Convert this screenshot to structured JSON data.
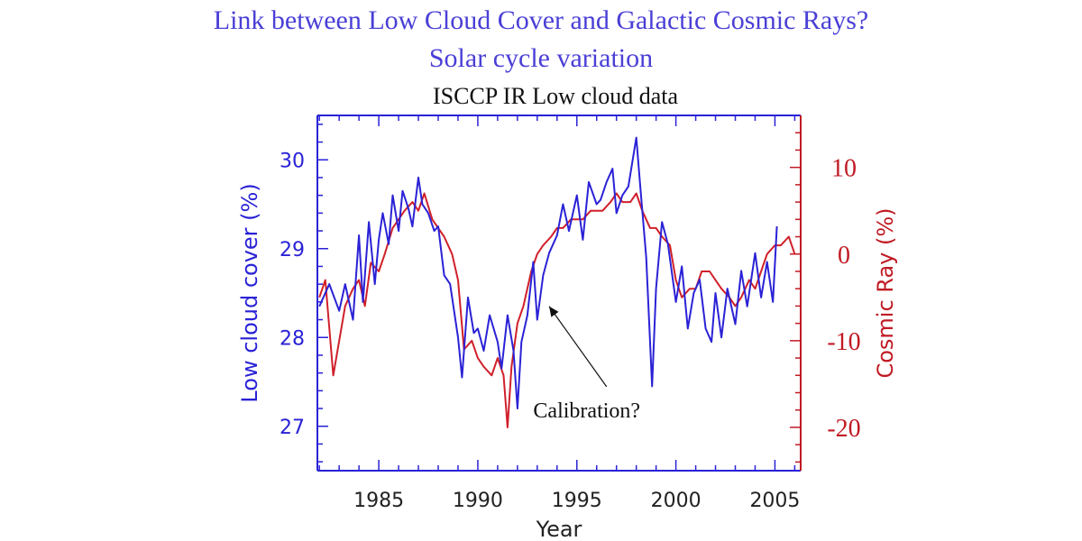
{
  "page": {
    "title_line1": "Link between Low Cloud Cover and Galactic Cosmic Rays?",
    "title_line2": "Solar cycle variation"
  },
  "chart_data": {
    "type": "line",
    "title": "ISCCP IR Low cloud data",
    "xlabel": "Year",
    "ylabel_left": "Low cloud cover (%)",
    "ylabel_right": "Cosmic Ray (%)",
    "xlim": [
      1981.9,
      2006.3
    ],
    "ylim_left": [
      26.5,
      30.5
    ],
    "ylim_right": [
      -25,
      16
    ],
    "x_ticks": [
      1985,
      1990,
      1995,
      2000,
      2005
    ],
    "y_ticks_left": [
      27,
      28,
      29,
      30
    ],
    "y_ticks_right": [
      10,
      0,
      -10,
      -20
    ],
    "grid": false,
    "colors": {
      "cloud": "#2a22d6",
      "cosmic": "#d0202a",
      "left_axis": "#2a22d6",
      "right_axis": "#c01a24",
      "title": "#4a3fd6"
    },
    "annotation": {
      "text": "Calibration?",
      "x": 1995.5,
      "y": 27.1,
      "arrow_to": [
        1993.6,
        28.35
      ]
    },
    "series": [
      {
        "axis": "left",
        "color": "#2a22d6",
        "x": [
          1982.0,
          1982.5,
          1983.0,
          1983.3,
          1983.7,
          1984.0,
          1984.2,
          1984.5,
          1984.8,
          1985.0,
          1985.2,
          1985.5,
          1985.7,
          1986.0,
          1986.2,
          1986.5,
          1986.7,
          1987.0,
          1987.2,
          1987.5,
          1987.8,
          1988.0,
          1988.3,
          1988.6,
          1989.0,
          1989.2,
          1989.5,
          1989.8,
          1990.0,
          1990.3,
          1990.6,
          1991.0,
          1991.2,
          1991.5,
          1991.8,
          1992.0,
          1992.2,
          1992.5,
          1992.8,
          1993.0,
          1993.3,
          1993.6,
          1994.0,
          1994.3,
          1994.6,
          1995.0,
          1995.3,
          1995.6,
          1996.0,
          1996.2,
          1996.5,
          1996.8,
          1997.0,
          1997.3,
          1997.6,
          1998.0,
          1998.2,
          1998.5,
          1998.8,
          1999.0,
          1999.3,
          1999.6,
          2000.0,
          2000.3,
          2000.6,
          2000.9,
          2001.2,
          2001.5,
          2001.8,
          2002.0,
          2002.3,
          2002.6,
          2003.0,
          2003.3,
          2003.6,
          2004.0,
          2004.3,
          2004.6,
          2004.9,
          2005.1
        ],
        "y": [
          28.35,
          28.6,
          28.3,
          28.6,
          28.2,
          29.15,
          28.4,
          29.3,
          28.6,
          29.1,
          29.4,
          29.05,
          29.6,
          29.2,
          29.65,
          29.45,
          29.25,
          29.8,
          29.5,
          29.4,
          29.2,
          29.25,
          28.7,
          28.6,
          28.0,
          27.55,
          28.45,
          28.05,
          28.1,
          27.85,
          28.25,
          27.95,
          27.65,
          28.25,
          27.85,
          27.2,
          27.95,
          28.25,
          28.85,
          28.2,
          28.7,
          28.95,
          29.15,
          29.5,
          29.2,
          29.6,
          29.1,
          29.75,
          29.5,
          29.55,
          29.75,
          29.9,
          29.4,
          29.6,
          29.7,
          30.25,
          29.7,
          28.9,
          27.45,
          28.55,
          29.3,
          29.05,
          28.4,
          28.8,
          28.1,
          28.5,
          28.65,
          28.1,
          27.95,
          28.5,
          28.0,
          28.55,
          28.15,
          28.75,
          28.35,
          28.95,
          28.45,
          28.85,
          28.4,
          29.25
        ]
      },
      {
        "axis": "right",
        "color": "#d0202a",
        "x": [
          1982.0,
          1982.3,
          1982.7,
          1983.0,
          1983.3,
          1983.7,
          1984.0,
          1984.3,
          1984.6,
          1985.0,
          1985.3,
          1985.7,
          1986.0,
          1986.3,
          1986.7,
          1987.0,
          1987.3,
          1987.7,
          1988.0,
          1988.3,
          1988.7,
          1989.0,
          1989.3,
          1989.7,
          1990.0,
          1990.3,
          1990.7,
          1991.0,
          1991.3,
          1991.5,
          1991.7,
          1992.0,
          1992.3,
          1992.7,
          1993.0,
          1993.3,
          1993.7,
          1994.0,
          1994.3,
          1994.7,
          1995.0,
          1995.3,
          1995.7,
          1996.0,
          1996.3,
          1996.7,
          1997.0,
          1997.3,
          1997.7,
          1998.0,
          1998.3,
          1998.7,
          1999.0,
          1999.3,
          1999.7,
          2000.0,
          2000.3,
          2000.7,
          2001.0,
          2001.3,
          2001.7,
          2002.0,
          2002.3,
          2002.7,
          2003.0,
          2003.3,
          2003.7,
          2004.0,
          2004.3,
          2004.6,
          2005.0,
          2005.3,
          2005.7,
          2006.0
        ],
        "y": [
          -5,
          -3,
          -14,
          -10,
          -6,
          -4,
          -3,
          -6,
          -1,
          -2,
          0,
          3,
          4,
          5,
          6,
          5,
          7,
          4,
          3,
          2,
          0,
          -3,
          -11,
          -10,
          -12,
          -13,
          -14,
          -12,
          -14,
          -20,
          -13,
          -8,
          -6,
          -2,
          0,
          1,
          2,
          3,
          3,
          4,
          4,
          4,
          5,
          5,
          5,
          6,
          7,
          6,
          6,
          7,
          5,
          3,
          3,
          2,
          1,
          -3,
          -5,
          -4,
          -4,
          -2,
          -2,
          -3,
          -4,
          -5,
          -6,
          -5,
          -3,
          -4,
          -2,
          0,
          1,
          1,
          2,
          0
        ]
      }
    ]
  }
}
